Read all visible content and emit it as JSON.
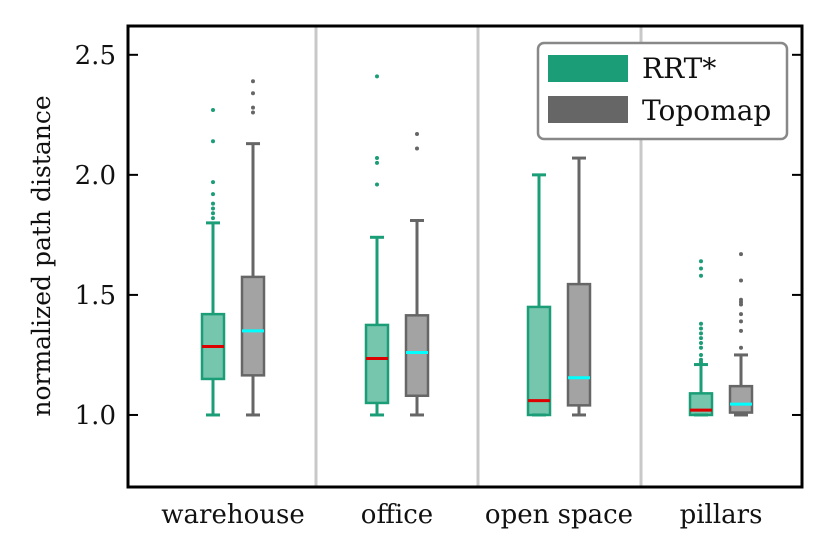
{
  "chart_data": {
    "type": "box",
    "categories": [
      "warehouse",
      "office",
      "open space",
      "pillars"
    ],
    "ylabel": "normalized path distance",
    "ylim": [
      0.7,
      2.62
    ],
    "yticks": [
      1.0,
      1.5,
      2.0,
      2.5
    ],
    "ytick_labels": [
      "1.0",
      "1.5",
      "2.0",
      "2.5"
    ],
    "legend_position": "top-right",
    "series": [
      {
        "name": "RRT*",
        "color": "#1b9e77",
        "median_color": "#dd0000",
        "boxes": [
          {
            "whislo": 1.0,
            "q1": 1.15,
            "med": 1.285,
            "q3": 1.42,
            "whishi": 1.8,
            "fliers": [
              1.82,
              1.84,
              1.86,
              1.88,
              1.92,
              1.97,
              2.14,
              2.27
            ]
          },
          {
            "whislo": 1.0,
            "q1": 1.05,
            "med": 1.235,
            "q3": 1.375,
            "whishi": 1.74,
            "fliers": [
              1.96,
              2.05,
              2.07,
              2.41
            ]
          },
          {
            "whislo": 1.0,
            "q1": 1.0,
            "med": 1.06,
            "q3": 1.45,
            "whishi": 2.0,
            "fliers": [
              2.31
            ]
          },
          {
            "whislo": 1.0,
            "q1": 1.0,
            "med": 1.02,
            "q3": 1.09,
            "whishi": 1.21,
            "fliers": [
              1.22,
              1.23,
              1.25,
              1.28,
              1.3,
              1.32,
              1.34,
              1.36,
              1.38,
              1.58,
              1.61,
              1.64
            ]
          }
        ]
      },
      {
        "name": "Topomap",
        "color": "#666666",
        "median_color": "#00ffff",
        "boxes": [
          {
            "whislo": 1.0,
            "q1": 1.165,
            "med": 1.35,
            "q3": 1.575,
            "whishi": 2.13,
            "fliers": [
              2.26,
              2.28,
              2.34,
              2.39
            ]
          },
          {
            "whislo": 1.0,
            "q1": 1.08,
            "med": 1.26,
            "q3": 1.415,
            "whishi": 1.81,
            "fliers": [
              2.11,
              2.17
            ]
          },
          {
            "whislo": 1.0,
            "q1": 1.04,
            "med": 1.155,
            "q3": 1.545,
            "whishi": 2.07,
            "fliers": []
          },
          {
            "whislo": 1.0,
            "q1": 1.01,
            "med": 1.045,
            "q3": 1.12,
            "whishi": 1.25,
            "fliers": [
              1.28,
              1.35,
              1.39,
              1.42,
              1.46,
              1.47,
              1.48,
              1.56,
              1.67
            ]
          }
        ]
      }
    ]
  }
}
